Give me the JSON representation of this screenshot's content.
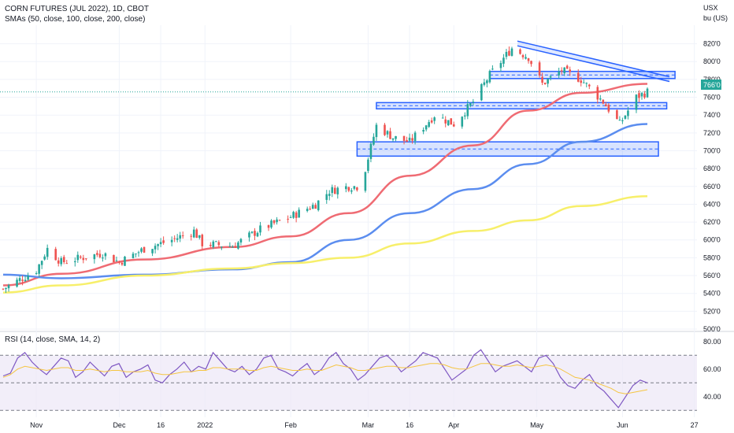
{
  "header": {
    "title": "CORN FUTURES (JUL 2022), 1D, CBOT",
    "indicator": "SMAs (50, close, 100, close, 200, close)",
    "unit_line1": "USX",
    "unit_line2": "bu (US)"
  },
  "rsi_label": "RSI (14, close, SMA, 14, 2)",
  "last_price_label": "766'0",
  "colors": {
    "up": "#26a69a",
    "down": "#ef5350",
    "sma50": "#ef6b73",
    "sma100": "#5b8def",
    "sma200": "#f7ef6a",
    "zone": "#2962ff",
    "rsi": "#7e57c2",
    "rsi_ma": "#f5c542",
    "rsi_band": "#ede7f6"
  },
  "chart_data": [
    {
      "type": "candlestick",
      "x_ticks": [
        "Nov",
        "Dec",
        "16",
        "2022",
        "Feb",
        "Mar",
        "16",
        "Apr",
        "May",
        "Jun",
        "27"
      ],
      "y_ticks": [
        "500'0",
        "520'0",
        "540'0",
        "560'0",
        "580'0",
        "600'0",
        "620'0",
        "640'0",
        "660'0",
        "680'0",
        "700'0",
        "720'0",
        "740'0",
        "760'0",
        "780'0",
        "800'0",
        "820'0"
      ],
      "ylim": [
        500,
        832
      ],
      "last_price": 766,
      "ohlc_anchors": [
        {
          "x": "Oct 20",
          "close": 545
        },
        {
          "x": "Nov 1",
          "close": 566
        },
        {
          "x": "Nov 5",
          "close": 590
        },
        {
          "x": "Nov 10",
          "close": 575
        },
        {
          "x": "Nov 25",
          "close": 585
        },
        {
          "x": "Dec 1",
          "close": 575
        },
        {
          "x": "Dec 10",
          "close": 590
        },
        {
          "x": "Dec 20",
          "close": 600
        },
        {
          "x": "Dec 28",
          "close": 610
        },
        {
          "x": "Dec 31",
          "close": 596
        },
        {
          "x": "Jan 11",
          "close": 593
        },
        {
          "x": "Jan 21",
          "close": 612
        },
        {
          "x": "Feb 1",
          "close": 626
        },
        {
          "x": "Feb 10",
          "close": 640
        },
        {
          "x": "Feb 15",
          "close": 655
        },
        {
          "x": "Feb 22",
          "close": 660
        },
        {
          "x": "Feb 25",
          "close": 660
        },
        {
          "x": "Feb 28",
          "close": 680
        },
        {
          "x": "Mar 4",
          "close": 728
        },
        {
          "x": "Mar 10",
          "close": 715
        },
        {
          "x": "Mar 16",
          "close": 710
        },
        {
          "x": "Mar 25",
          "close": 740
        },
        {
          "x": "Apr 1",
          "close": 730
        },
        {
          "x": "Apr 8",
          "close": 755
        },
        {
          "x": "Apr 14",
          "close": 785
        },
        {
          "x": "Apr 22",
          "close": 815
        },
        {
          "x": "Apr 28",
          "close": 805
        },
        {
          "x": "May 3",
          "close": 775
        },
        {
          "x": "May 10",
          "close": 790
        },
        {
          "x": "May 17",
          "close": 780
        },
        {
          "x": "May 25",
          "close": 755
        },
        {
          "x": "May 31",
          "close": 730
        },
        {
          "x": "Jun 6",
          "close": 760
        },
        {
          "x": "Jun 10",
          "close": 766
        }
      ],
      "series": [
        {
          "name": "SMA 50",
          "points": [
            [
              "Oct 20",
              549
            ],
            [
              "Nov 10",
              562
            ],
            [
              "Dec 10",
              578
            ],
            [
              "Jan 11",
              592
            ],
            [
              "Feb 1",
              604
            ],
            [
              "Feb 22",
              630
            ],
            [
              "Mar 16",
              672
            ],
            [
              "Apr 8",
              706
            ],
            [
              "Apr 28",
              745
            ],
            [
              "May 17",
              765
            ],
            [
              "Jun 10",
              775
            ]
          ]
        },
        {
          "name": "SMA 100",
          "points": [
            [
              "Oct 20",
              561
            ],
            [
              "Nov 10",
              557
            ],
            [
              "Dec 10",
              561
            ],
            [
              "Jan 11",
              567
            ],
            [
              "Feb 1",
              575
            ],
            [
              "Feb 22",
              600
            ],
            [
              "Mar 16",
              630
            ],
            [
              "Apr 8",
              657
            ],
            [
              "Apr 28",
              685
            ],
            [
              "May 17",
              710
            ],
            [
              "Jun 10",
              730
            ]
          ]
        },
        {
          "name": "SMA 200",
          "points": [
            [
              "Oct 20",
              541
            ],
            [
              "Nov 10",
              549
            ],
            [
              "Dec 10",
              560
            ],
            [
              "Jan 11",
              568
            ],
            [
              "Feb 1",
              574
            ],
            [
              "Feb 22",
              580
            ],
            [
              "Mar 16",
              596
            ],
            [
              "Apr 8",
              610
            ],
            [
              "Apr 28",
              622
            ],
            [
              "May 17",
              638
            ],
            [
              "Jun 10",
              649
            ]
          ]
        }
      ],
      "zones": [
        {
          "top": 710,
          "bottom": 694,
          "from": "Feb 25",
          "to": "Jun 14"
        },
        {
          "top": 754,
          "bottom": 747,
          "from": "Mar 4",
          "to": "Jun 17"
        },
        {
          "top": 789,
          "bottom": 781,
          "from": "Apr 14",
          "to": "Jun 20"
        }
      ],
      "trendline": {
        "from": [
          "Apr 24",
          823
        ],
        "to": [
          "Jun 18",
          783
        ]
      }
    },
    {
      "type": "line",
      "y_ticks": [
        "40.00",
        "60.00",
        "80.00"
      ],
      "ylim": [
        25,
        85
      ],
      "levels": [
        70,
        50,
        30
      ],
      "series": [
        {
          "name": "RSI",
          "values": [
            55,
            57,
            68,
            72,
            65,
            60,
            56,
            62,
            68,
            66,
            54,
            58,
            65,
            60,
            55,
            62,
            64,
            54,
            58,
            60,
            63,
            52,
            50,
            56,
            60,
            65,
            58,
            62,
            60,
            72,
            66,
            60,
            58,
            62,
            56,
            60,
            68,
            70,
            60,
            58,
            55,
            60,
            64,
            56,
            60,
            68,
            72,
            64,
            60,
            52,
            56,
            62,
            68,
            70,
            65,
            58,
            62,
            66,
            72,
            70,
            68,
            60,
            52,
            56,
            60,
            70,
            74,
            66,
            58,
            62,
            64,
            66,
            62,
            58,
            68,
            70,
            64,
            54,
            48,
            46,
            52,
            56,
            48,
            44,
            38,
            32,
            40,
            48,
            52,
            50
          ]
        },
        {
          "name": "RSI MA",
          "values": [
            54,
            56,
            60,
            62,
            61,
            60,
            59,
            60,
            61,
            61,
            59,
            59,
            60,
            59,
            58,
            59,
            59,
            58,
            58,
            58,
            59,
            57,
            56,
            56,
            57,
            58,
            58,
            59,
            59,
            61,
            61,
            60,
            60,
            60,
            59,
            59,
            61,
            62,
            61,
            60,
            59,
            59,
            60,
            59,
            59,
            61,
            63,
            62,
            61,
            59,
            59,
            60,
            61,
            62,
            62,
            61,
            61,
            62,
            63,
            64,
            64,
            63,
            61,
            60,
            60,
            62,
            64,
            64,
            63,
            62,
            62,
            63,
            62,
            61,
            62,
            63,
            62,
            60,
            57,
            54,
            53,
            52,
            50,
            48,
            46,
            43,
            42,
            43,
            44,
            45
          ]
        }
      ]
    }
  ]
}
